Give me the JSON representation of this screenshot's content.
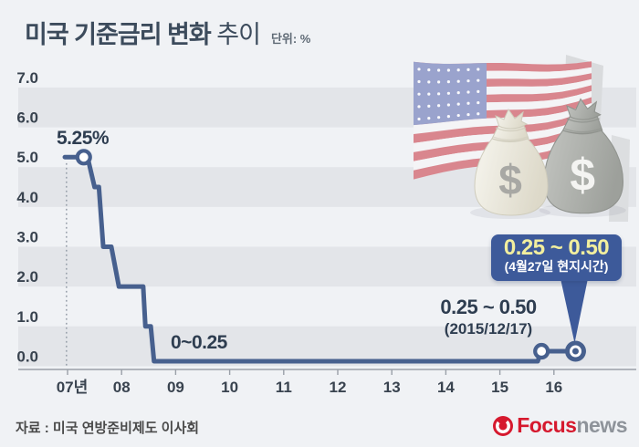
{
  "title": {
    "main": "미국 기준금리 변화",
    "tail": "추이",
    "unit": "단위: %"
  },
  "chart_data": {
    "type": "line",
    "step": true,
    "title": "미국 기준금리 변화 추이",
    "ylabel": "%",
    "ylim": [
      0,
      7
    ],
    "yticks": [
      7,
      6,
      5,
      4,
      3,
      2,
      1,
      0
    ],
    "xticks": [
      {
        "year": 2007,
        "label": "07년"
      },
      {
        "year": 2008,
        "label": "08"
      },
      {
        "year": 2009,
        "label": "09"
      },
      {
        "year": 2010,
        "label": "10"
      },
      {
        "year": 2011,
        "label": "11"
      },
      {
        "year": 2012,
        "label": "12"
      },
      {
        "year": 2013,
        "label": "13"
      },
      {
        "year": 2014,
        "label": "14"
      },
      {
        "year": 2015,
        "label": "15"
      },
      {
        "year": 2016,
        "label": "16"
      }
    ],
    "series": [
      {
        "name": "미국 기준금리",
        "step_points": [
          [
            2006.95,
            5.25
          ],
          [
            2007.37,
            5.25
          ],
          [
            2007.5,
            4.5
          ],
          [
            2007.58,
            4.5
          ],
          [
            2007.66,
            3.0
          ],
          [
            2007.81,
            3.0
          ],
          [
            2007.95,
            2.0
          ],
          [
            2008.4,
            2.0
          ],
          [
            2008.44,
            1.0
          ],
          [
            2008.54,
            1.0
          ],
          [
            2008.6,
            0.125
          ],
          [
            2015.7,
            0.125
          ],
          [
            2015.77,
            0.375
          ],
          [
            2016.4,
            0.375
          ]
        ]
      }
    ],
    "markers": [
      {
        "year": 2007.3,
        "value": 5.25,
        "style": "ring"
      },
      {
        "year": 2015.77,
        "value": 0.375,
        "style": "ring"
      },
      {
        "year": 2016.4,
        "value": 0.375,
        "style": "bullseye"
      }
    ],
    "guide_line": {
      "year": 2006.98,
      "from": 5.1,
      "to": 0
    },
    "annotations": [
      {
        "id": "start",
        "text": "5.25%"
      },
      {
        "id": "zero-range",
        "text": "0~0.25"
      },
      {
        "id": "dec-2015",
        "text": "0.25 ~ 0.50",
        "sub": "(2015/12/17)"
      },
      {
        "id": "apr-2016",
        "text": "0.25 ~ 0.50",
        "sub": "(4월27일 현지시간)"
      }
    ]
  },
  "source": "자료 : 미국 연방준비제도 이사회",
  "logo": {
    "name": "Focus news",
    "focus": "Focus",
    "news": "news"
  },
  "colors": {
    "background": "#f0f2f5",
    "band": "#e3e5e9",
    "line": "#47608e",
    "axis": "#9aa0a8",
    "tick_label": "#39434f",
    "title": "#3c4b5c",
    "annotation": "#2e3d50",
    "callout_bg": "#3d5a9a",
    "callout_yellow": "#f2ef9e",
    "logo_red": "#d6192e",
    "flag_red": "#d9868e",
    "flag_blue": "#9aa3cd",
    "bag_light": "#edebdf",
    "bag_dark": "#b0b2ae"
  }
}
